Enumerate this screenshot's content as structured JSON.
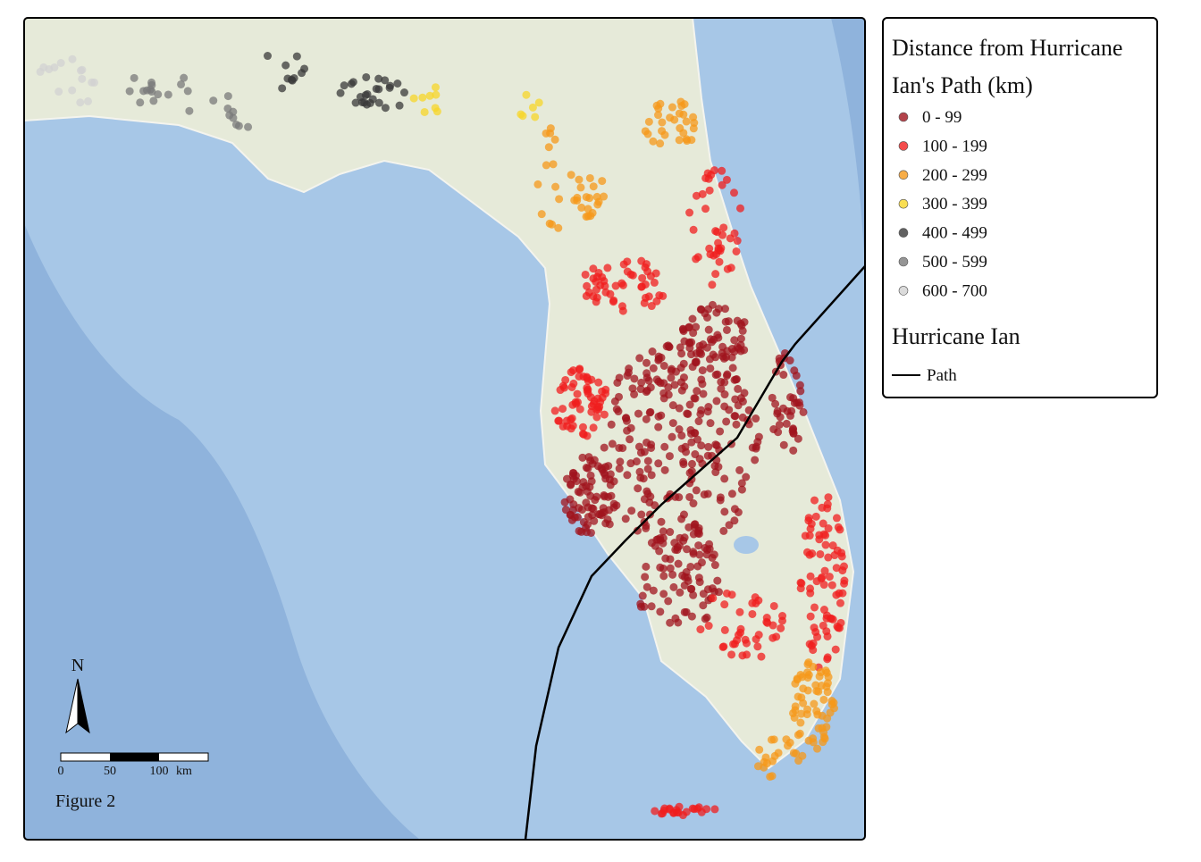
{
  "legend": {
    "title_lines": [
      "Distance from Hurricane",
      "Ian's Path (km)"
    ],
    "items": [
      {
        "label": "0 - 99",
        "color": "#a0141e"
      },
      {
        "label": "100 - 199",
        "color": "#f01e1e"
      },
      {
        "label": "200 - 299",
        "color": "#f5981a"
      },
      {
        "label": "300 - 399",
        "color": "#f7d628"
      },
      {
        "label": "400 - 499",
        "color": "#3a3a3a"
      },
      {
        "label": "500 - 599",
        "color": "#7a7a7a"
      },
      {
        "label": "600 - 700",
        "color": "#d2d2d2"
      }
    ],
    "hurricane_title": "Hurricane Ian",
    "path_label": "Path"
  },
  "north_label": "N",
  "scale_labels": [
    "0",
    "50",
    "100",
    "km"
  ],
  "figure_label": "Figure 2"
}
